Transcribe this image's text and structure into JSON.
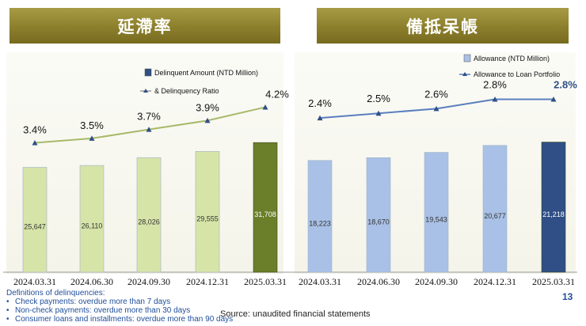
{
  "left_header": "延滯率",
  "right_header": "備抵呆帳",
  "definitions": {
    "title": "Definitions of delinquencies:",
    "bullet": "•",
    "items": [
      "Check payments: overdue more than 7 days",
      "Non-check payments: overdue  more than 30 days",
      "Consumer loans and installments: overdue more than 90 days"
    ]
  },
  "source": "Source: unaudited financial statements",
  "page_number": "13",
  "colors": {
    "bar_light_green": "#d6e4a8",
    "bar_dark_green": "#6b7f2a",
    "line_green": "#a8b96a",
    "bar_light_blue": "#a9c1e6",
    "bar_dark_blue": "#2f4f86",
    "line_blue": "#5a7fbf",
    "marker": "#2f4f86"
  },
  "chart_data": [
    {
      "type": "bar+line",
      "categories": [
        "2024.03.31",
        "2024.06.30",
        "2024.09.30",
        "2024.12.31",
        "2025.03.31"
      ],
      "series": [
        {
          "name": "Delinquent Amount (NTD Million)",
          "kind": "bar",
          "values": [
            25647,
            26110,
            28026,
            29555,
            31708
          ],
          "labels": [
            "25,647",
            "26,110",
            "28,026",
            "29,555",
            "31,708"
          ]
        },
        {
          "name": "& Delinquency Ratio",
          "kind": "line",
          "values": [
            3.4,
            3.5,
            3.7,
            3.9,
            4.2
          ],
          "labels": [
            "3.4%",
            "3.5%",
            "3.7%",
            "3.9%",
            "4.2%"
          ]
        }
      ],
      "legend": [
        "Delinquent Amount (NTD Million)",
        "& Delinquency Ratio"
      ],
      "bar_ylim": [
        0,
        48000
      ],
      "line_ylim": [
        0.5,
        4.9
      ],
      "highlight_last": true
    },
    {
      "type": "bar+line",
      "categories": [
        "2024.03.31",
        "2024.06.30",
        "2024.09.30",
        "2024.12.31",
        "2025.03.31"
      ],
      "series": [
        {
          "name": "Allowance  (NTD Million)",
          "kind": "bar",
          "values": [
            18223,
            18670,
            19543,
            20677,
            21218
          ],
          "labels": [
            "18,223",
            "18,670",
            "19,543",
            "20,677",
            "21,218"
          ]
        },
        {
          "name": "Allowance to Loan Portfolio",
          "kind": "line",
          "values": [
            2.4,
            2.5,
            2.6,
            2.8,
            2.8
          ],
          "labels": [
            "2.4%",
            "2.5%",
            "2.6%",
            "2.8%",
            "2.8%"
          ]
        }
      ],
      "legend": [
        "Allowance  (NTD Million)",
        "Allowance to Loan Portfolio"
      ],
      "bar_ylim": [
        0,
        32000
      ],
      "line_ylim": [
        -0.9,
        3.3
      ],
      "highlight_last": true
    }
  ]
}
